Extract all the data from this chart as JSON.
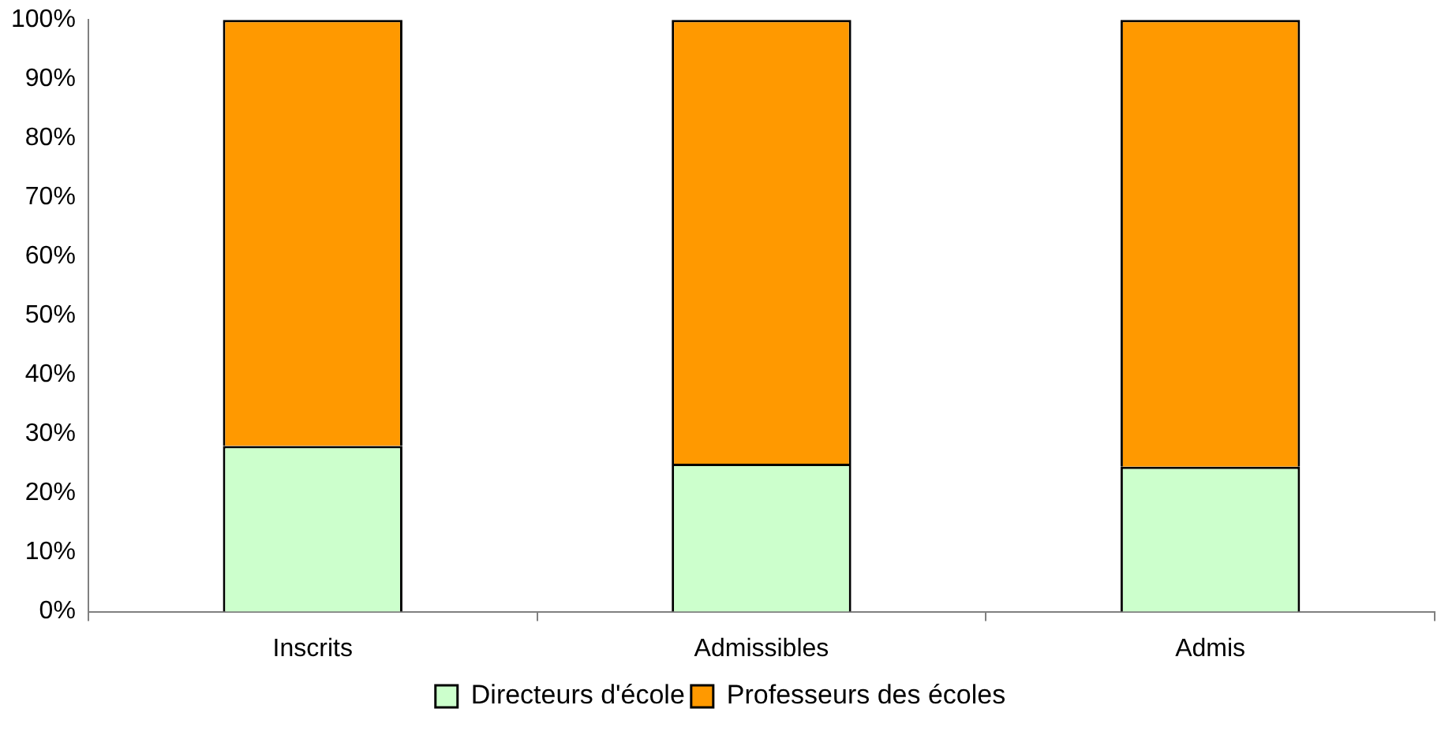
{
  "chart_data": {
    "type": "bar",
    "stacked": true,
    "categories": [
      "Inscrits",
      "Admissibles",
      "Admis"
    ],
    "series": [
      {
        "name": "Directeurs d'école",
        "color": "#ccffcc",
        "values": [
          28,
          25,
          24.5
        ]
      },
      {
        "name": "Professeurs des écoles",
        "color": "#ff9900",
        "values": [
          72,
          75,
          75.5
        ]
      }
    ],
    "ylim": [
      0,
      100
    ],
    "yticks": [
      {
        "value": 0,
        "label": "0%"
      },
      {
        "value": 10,
        "label": "10%"
      },
      {
        "value": 20,
        "label": "20%"
      },
      {
        "value": 30,
        "label": "30%"
      },
      {
        "value": 40,
        "label": "40%"
      },
      {
        "value": 50,
        "label": "50%"
      },
      {
        "value": 60,
        "label": "60%"
      },
      {
        "value": 70,
        "label": "70%"
      },
      {
        "value": 80,
        "label": "80%"
      },
      {
        "value": 90,
        "label": "90%"
      },
      {
        "value": 100,
        "label": "100%"
      }
    ],
    "grid": false,
    "legend": "bottom"
  }
}
